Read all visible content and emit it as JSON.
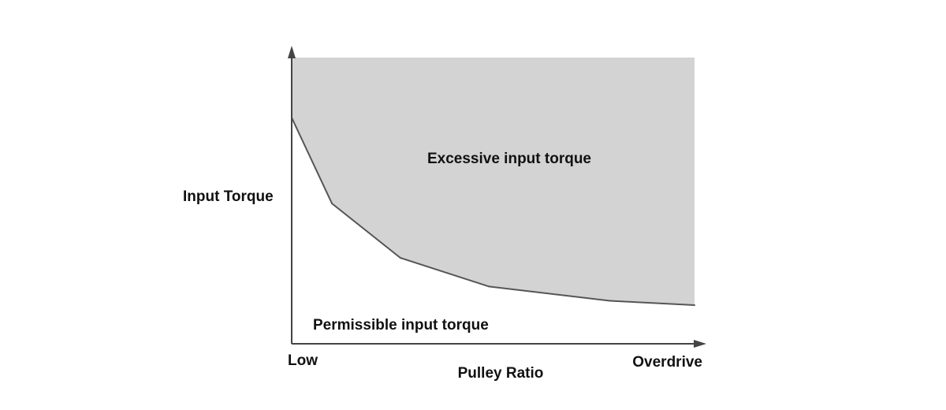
{
  "chart_data": {
    "type": "area",
    "ylabel": "Input Torque",
    "xlabel": "Pulley Ratio",
    "x_tick_labels": {
      "min": "Low",
      "max": "Overdrive"
    },
    "xlim": [
      0,
      1
    ],
    "ylim": [
      0,
      1
    ],
    "grid": false,
    "legend": "none",
    "series": [
      {
        "x": [
          0.0,
          0.1,
          0.27,
          0.49,
          0.79,
          1.0
        ],
        "y": [
          0.79,
          0.49,
          0.3,
          0.2,
          0.15,
          0.135
        ]
      }
    ],
    "regions": {
      "above": "Excessive input torque",
      "below": "Permissible input torque"
    },
    "colors": {
      "shaded_region": "#d3d3d3",
      "curve": "#555555",
      "axis": "#444444",
      "text": "#111111"
    }
  }
}
